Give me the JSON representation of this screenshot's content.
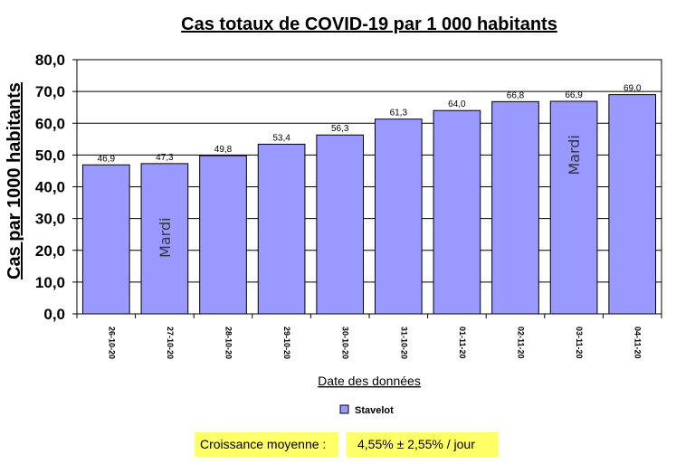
{
  "chart_data": {
    "type": "bar",
    "title": "Cas totaux de COVID-19 par 1 000 habitants",
    "ylabel": "Cas par 1000 habitants",
    "xlabel": "Date des données",
    "categories": [
      "26-10-20",
      "27-10-20",
      "28-10-20",
      "29-10-20",
      "30-10-20",
      "31-10-20",
      "01-11-20",
      "02-11-20",
      "03-11-20",
      "04-11-20"
    ],
    "series": [
      {
        "name": "Stavelot",
        "values": [
          46.9,
          47.3,
          49.8,
          53.4,
          56.3,
          61.3,
          64.0,
          66.8,
          66.9,
          69.0
        ],
        "color": "#9999ff"
      }
    ],
    "data_labels": [
      "46,9",
      "47,3",
      "49,8",
      "53,4",
      "56,3",
      "61,3",
      "64,0",
      "66,8",
      "66,9",
      "69,0"
    ],
    "yticks": [
      "0,0",
      "10,0",
      "20,0",
      "30,0",
      "40,0",
      "50,0",
      "60,0",
      "70,0",
      "80,0"
    ],
    "ytick_values": [
      0,
      10,
      20,
      30,
      40,
      50,
      60,
      70,
      80
    ],
    "ylim": [
      0,
      80
    ],
    "grid": "horizontal",
    "legend": "bottom-center",
    "annotations": [
      {
        "text": "Mardi",
        "category": "27-10-20",
        "y": 24
      },
      {
        "text": "Mardi",
        "category": "03-11-20",
        "y": 50
      }
    ]
  },
  "footer": {
    "growth_label": "Croissance moyenne :",
    "growth_value": "4,55%  ± 2,55% / jour"
  }
}
